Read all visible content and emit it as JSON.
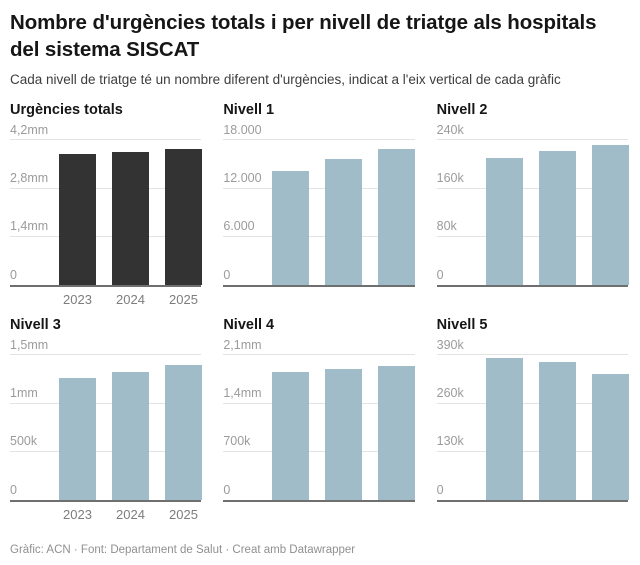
{
  "header": {
    "title": "Nombre d'urgències totals i per nivell de triatge als hospitals del sistema SISCAT",
    "subtitle": "Cada nivell de triatge té un nombre diferent d'urgències, indicat a l'eix vertical de cada gràfic"
  },
  "footer": {
    "attribution": "Gràfic: ACN · Font: Departament de Salut · Creat amb Datawrapper"
  },
  "years": [
    "2023",
    "2024",
    "2025"
  ],
  "colors": {
    "total_bar": "#333333",
    "level_bar": "#a0bcc9",
    "gridline": "#e3e3e3",
    "axis_line": "#6f6f6f",
    "tick_label": "#9b9b9b"
  },
  "chart_data": [
    {
      "type": "bar",
      "title": "Urgències totals",
      "categories": [
        "2023",
        "2024",
        "2025"
      ],
      "values": [
        3800000,
        3870000,
        3950000
      ],
      "xlabel": "",
      "ylabel": "",
      "ylim": [
        0,
        4200000
      ],
      "grid": true,
      "show_x_labels": true,
      "bar_color": "#333333",
      "yticks": [
        {
          "value": 0,
          "label": "0"
        },
        {
          "value": 1400000,
          "label": "1,4mm"
        },
        {
          "value": 2800000,
          "label": "2,8mm"
        },
        {
          "value": 4200000,
          "label": "4,2mm"
        }
      ]
    },
    {
      "type": "bar",
      "title": "Nivell 1",
      "categories": [
        "2023",
        "2024",
        "2025"
      ],
      "values": [
        14200,
        15700,
        16900
      ],
      "xlabel": "",
      "ylabel": "",
      "ylim": [
        0,
        18000
      ],
      "grid": true,
      "show_x_labels": false,
      "bar_color": "#a0bcc9",
      "yticks": [
        {
          "value": 0,
          "label": "0"
        },
        {
          "value": 6000,
          "label": "6.000"
        },
        {
          "value": 12000,
          "label": "12.000"
        },
        {
          "value": 18000,
          "label": "18.000"
        }
      ]
    },
    {
      "type": "bar",
      "title": "Nivell 2",
      "categories": [
        "2023",
        "2024",
        "2025"
      ],
      "values": [
        210000,
        223000,
        232000
      ],
      "xlabel": "",
      "ylabel": "",
      "ylim": [
        0,
        240000
      ],
      "grid": true,
      "show_x_labels": false,
      "bar_color": "#a0bcc9",
      "yticks": [
        {
          "value": 0,
          "label": "0"
        },
        {
          "value": 80000,
          "label": "80k"
        },
        {
          "value": 160000,
          "label": "160k"
        },
        {
          "value": 240000,
          "label": "240k"
        }
      ]
    },
    {
      "type": "bar",
      "title": "Nivell 3",
      "categories": [
        "2023",
        "2024",
        "2025"
      ],
      "values": [
        1260000,
        1330000,
        1400000
      ],
      "xlabel": "",
      "ylabel": "",
      "ylim": [
        0,
        1500000
      ],
      "grid": true,
      "show_x_labels": true,
      "bar_color": "#a0bcc9",
      "yticks": [
        {
          "value": 0,
          "label": "0"
        },
        {
          "value": 500000,
          "label": "500k"
        },
        {
          "value": 1000000,
          "label": "1mm"
        },
        {
          "value": 1500000,
          "label": "1,5mm"
        }
      ]
    },
    {
      "type": "bar",
      "title": "Nivell 4",
      "categories": [
        "2023",
        "2024",
        "2025"
      ],
      "values": [
        1860000,
        1900000,
        1940000
      ],
      "xlabel": "",
      "ylabel": "",
      "ylim": [
        0,
        2100000
      ],
      "grid": true,
      "show_x_labels": false,
      "bar_color": "#a0bcc9",
      "yticks": [
        {
          "value": 0,
          "label": "0"
        },
        {
          "value": 700000,
          "label": "700k"
        },
        {
          "value": 1400000,
          "label": "1,4mm"
        },
        {
          "value": 2100000,
          "label": "2,1mm"
        }
      ]
    },
    {
      "type": "bar",
      "title": "Nivell 5",
      "categories": [
        "2023",
        "2024",
        "2025"
      ],
      "values": [
        383000,
        372000,
        339000
      ],
      "xlabel": "",
      "ylabel": "",
      "ylim": [
        0,
        390000
      ],
      "grid": true,
      "show_x_labels": false,
      "bar_color": "#a0bcc9",
      "yticks": [
        {
          "value": 0,
          "label": "0"
        },
        {
          "value": 130000,
          "label": "130k"
        },
        {
          "value": 260000,
          "label": "260k"
        },
        {
          "value": 390000,
          "label": "390k"
        }
      ]
    }
  ]
}
